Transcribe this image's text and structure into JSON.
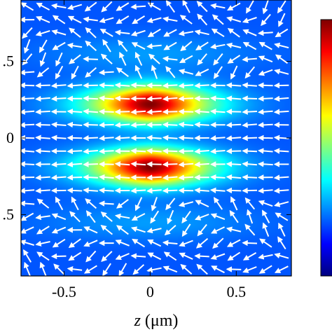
{
  "chart_data": {
    "type": "heatmap",
    "title": "",
    "xlabel_var": "z",
    "xlabel_unit": " (μm)",
    "ylabel": "",
    "xlim": [
      -0.75,
      0.82
    ],
    "ylim": [
      -0.9,
      0.9
    ],
    "x_ticks": [
      {
        "value": -0.5,
        "label": "-0.5"
      },
      {
        "value": 0,
        "label": "0"
      },
      {
        "value": 0.5,
        "label": "0.5"
      }
    ],
    "y_ticks": [
      {
        "value": 0.5,
        "label": ".5"
      },
      {
        "value": 0,
        "label": "0"
      },
      {
        "value": -0.5,
        "label": ".5"
      }
    ],
    "colormap": "jet",
    "colormap_colors": [
      "#00007f",
      "#0000ff",
      "#0080ff",
      "#00ffff",
      "#80ff80",
      "#ffff00",
      "#ff8000",
      "#ff0000",
      "#7f0000"
    ],
    "arrow_color": "#ffffff",
    "intensity_peaks": [
      {
        "x": 0.0,
        "y": 0.22,
        "sigma_x": 0.22,
        "sigma_y": 0.085,
        "amplitude": 1.0
      },
      {
        "x": 0.0,
        "y": -0.19,
        "sigma_x": 0.22,
        "sigma_y": 0.085,
        "amplitude": 1.0
      }
    ],
    "background_level": 0.1,
    "grid": false,
    "colorbar": true
  }
}
